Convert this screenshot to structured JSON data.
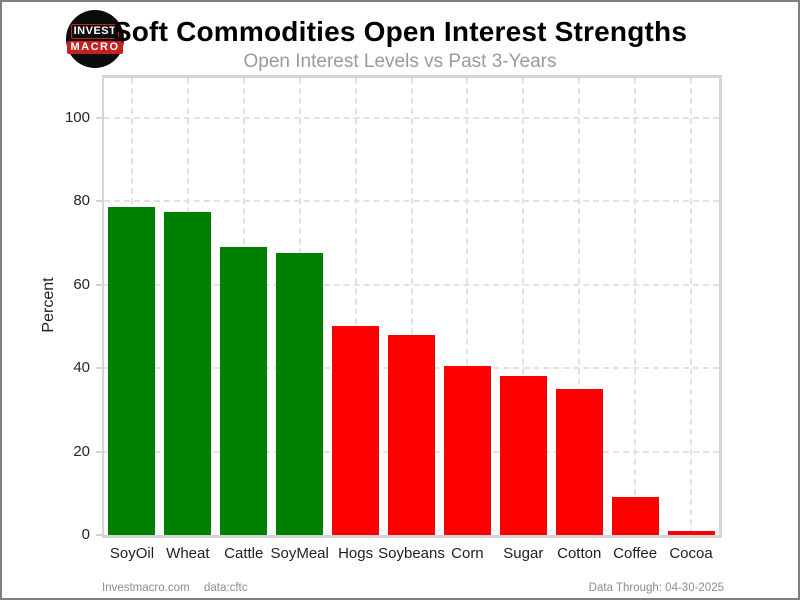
{
  "header": {
    "title": "Soft Commodities Open Interest Strengths",
    "subtitle": "Open Interest Levels vs Past 3-Years"
  },
  "logo": {
    "line1": "INVEST",
    "line2": "MACRO"
  },
  "footer": {
    "site": "Investmacro.com",
    "source": "data:cftc",
    "data_through": "Data Through: 04-30-2025"
  },
  "colors": {
    "positive_bar": "#008000",
    "negative_bar": "#ff0000",
    "grid": "#e2e2e2",
    "axis_border": "#d5d5d5",
    "subtitle_gray": "#9a9a9a",
    "footer_gray": "#8c8c8c",
    "logo_red": "#c62020",
    "logo_black": "#0c0c0c"
  },
  "chart_data": {
    "type": "bar",
    "title": "Soft Commodities Open Interest Strengths",
    "subtitle": "Open Interest Levels vs Past 3-Years",
    "categories": [
      "SoyOil",
      "Wheat",
      "Cattle",
      "SoyMeal",
      "Hogs",
      "Soybeans",
      "Corn",
      "Sugar",
      "Cotton",
      "Coffee",
      "Cocoa"
    ],
    "values": [
      78.5,
      77.5,
      69,
      67.5,
      50,
      48,
      40.5,
      38,
      35,
      9,
      1
    ],
    "bar_colors": [
      "#008000",
      "#008000",
      "#008000",
      "#008000",
      "#ff0000",
      "#ff0000",
      "#ff0000",
      "#ff0000",
      "#ff0000",
      "#ff0000",
      "#ff0000"
    ],
    "xlabel": "",
    "ylabel": "Percent",
    "ylim": [
      0,
      109.5
    ],
    "yticks": [
      0,
      20,
      40,
      60,
      80,
      100
    ],
    "grid": "dashed-both-axes",
    "legend": "none"
  }
}
